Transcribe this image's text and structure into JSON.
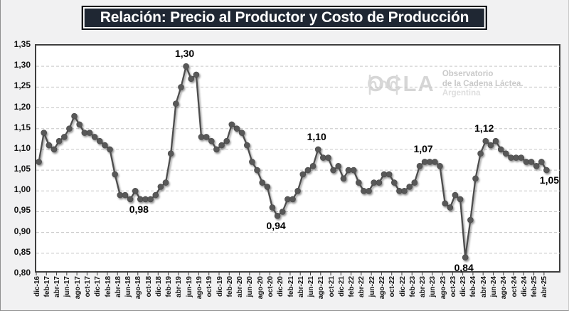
{
  "title": {
    "text": "Relación: Precio al Productor y Costo de Producción"
  },
  "watermark": {
    "icon": "milk-wave-icon",
    "brand": "OCLA",
    "line1": "Observatorio",
    "line2": "de la Cadena Láctea.",
    "line3": "Argentina"
  },
  "colors": {
    "title_bg": "#1f2733",
    "title_text": "#ffffff",
    "page_bg": "#f1f1f2",
    "plot_bg": "#ffffff",
    "plot_border": "#3f3f3f",
    "gridline": "#c6c6c6",
    "series_line": "#4d4d4d",
    "series_marker": "#595959",
    "axis_text": "#151515",
    "annotation_text": "#000000",
    "watermark_gray": "#d6d6d6"
  },
  "chart_data": {
    "type": "line",
    "title": "Relación: Precio al Productor y Costo de Producción",
    "xlabel": "",
    "ylabel": "",
    "ylim": [
      0.8,
      1.35
    ],
    "ytick_step": 0.05,
    "yticks": [
      "1,35",
      "1,30",
      "1,25",
      "1,20",
      "1,15",
      "1,10",
      "1,05",
      "1,00",
      "0,95",
      "0,90",
      "0,85",
      "0,80"
    ],
    "xtick_every": 2,
    "grid": "horizontal-dashed",
    "legend": "none",
    "marker": "circle",
    "x": [
      "dic-16",
      "ene-17",
      "feb-17",
      "mar-17",
      "abr-17",
      "may-17",
      "jun-17",
      "jul-17",
      "ago-17",
      "sep-17",
      "oct-17",
      "nov-17",
      "dic-17",
      "ene-18",
      "feb-18",
      "mar-18",
      "abr-18",
      "may-18",
      "jun-18",
      "jul-18",
      "ago-18",
      "sep-18",
      "oct-18",
      "nov-18",
      "dic-18",
      "ene-19",
      "feb-19",
      "mar-19",
      "abr-19",
      "may-19",
      "jun-19",
      "jul-19",
      "ago-19",
      "sep-19",
      "oct-19",
      "nov-19",
      "dic-19",
      "ene-20",
      "feb-20",
      "mar-20",
      "abr-20",
      "may-20",
      "jun-20",
      "jul-20",
      "ago-20",
      "sep-20",
      "oct-20",
      "nov-20",
      "dic-20",
      "ene-21",
      "feb-21",
      "mar-21",
      "abr-21",
      "may-21",
      "jun-21",
      "jul-21",
      "ago-21",
      "sep-21",
      "oct-21",
      "nov-21",
      "dic-21",
      "ene-22",
      "feb-22",
      "mar-22",
      "abr-22",
      "may-22",
      "jun-22",
      "jul-22",
      "ago-22",
      "sep-22",
      "oct-22",
      "nov-22",
      "dic-22",
      "ene-23",
      "feb-23",
      "mar-23",
      "abr-23",
      "may-23",
      "jun-23",
      "jul-23",
      "ago-23",
      "sep-23",
      "oct-23",
      "nov-23",
      "dic-23",
      "ene-24",
      "feb-24",
      "mar-24",
      "abr-24",
      "may-24",
      "jun-24",
      "jul-24",
      "ago-24",
      "sep-24",
      "oct-24",
      "nov-24",
      "dic-24",
      "ene-25",
      "feb-25",
      "mar-25",
      "abr-25"
    ],
    "values": [
      1.07,
      1.14,
      1.11,
      1.1,
      1.12,
      1.13,
      1.15,
      1.18,
      1.16,
      1.14,
      1.14,
      1.13,
      1.12,
      1.11,
      1.1,
      1.04,
      0.99,
      0.99,
      0.98,
      1.0,
      0.98,
      0.98,
      0.98,
      0.99,
      1.01,
      1.02,
      1.09,
      1.21,
      1.25,
      1.3,
      1.27,
      1.28,
      1.13,
      1.13,
      1.12,
      1.1,
      1.11,
      1.12,
      1.16,
      1.15,
      1.14,
      1.11,
      1.07,
      1.05,
      1.02,
      1.01,
      0.96,
      0.94,
      0.95,
      0.98,
      0.98,
      1.0,
      1.04,
      1.05,
      1.06,
      1.1,
      1.08,
      1.08,
      1.05,
      1.06,
      1.03,
      1.05,
      1.05,
      1.02,
      1.0,
      1.0,
      1.02,
      1.02,
      1.04,
      1.04,
      1.02,
      1.0,
      1.0,
      1.01,
      1.02,
      1.06,
      1.07,
      1.07,
      1.07,
      1.06,
      0.97,
      0.96,
      0.99,
      0.98,
      0.84,
      0.93,
      1.03,
      1.09,
      1.12,
      1.11,
      1.12,
      1.1,
      1.09,
      1.08,
      1.08,
      1.08,
      1.07,
      1.07,
      1.06,
      1.07,
      1.05
    ],
    "annotations": [
      {
        "x": "may-19",
        "text": "1,30",
        "pos": "above",
        "dx": 0
      },
      {
        "x": "ago-18",
        "text": "0,98",
        "pos": "below",
        "dx": 0
      },
      {
        "x": "nov-20",
        "text": "0,94",
        "pos": "below",
        "dx": 0
      },
      {
        "x": "jul-21",
        "text": "1,10",
        "pos": "above",
        "dx": 0
      },
      {
        "x": "abr-23",
        "text": "1,07",
        "pos": "above",
        "dx": 0
      },
      {
        "x": "dic-23",
        "text": "0,84",
        "pos": "below",
        "dx": 0
      },
      {
        "x": "abr-24",
        "text": "1,12",
        "pos": "above",
        "dx": 0
      },
      {
        "x": "abr-25",
        "text": "1,05",
        "pos": "below",
        "dx": 6
      }
    ]
  }
}
